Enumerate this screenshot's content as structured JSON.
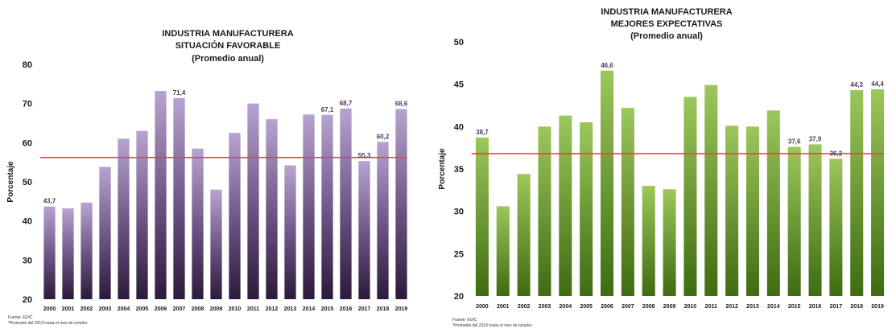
{
  "chart_data": [
    {
      "type": "bar",
      "title_lines": [
        "INDUSTRIA MANUFACTURERA",
        "SITUACIÓN FAVORABLE",
        "(Promedio anual)"
      ],
      "ylabel": "Porcentaje",
      "xlabel": "",
      "ylim": [
        20,
        80
      ],
      "yticks": [
        20,
        30,
        40,
        50,
        60,
        70,
        80
      ],
      "categories": [
        "2000",
        "2001",
        "2002",
        "2003",
        "2004",
        "2005",
        "2006",
        "2007",
        "2008",
        "2009",
        "2010",
        "2011",
        "2012",
        "2013",
        "2014",
        "2015",
        "2016",
        "2017",
        "2018",
        "2019"
      ],
      "values": [
        43.7,
        43.2,
        44.7,
        53.8,
        61.0,
        63.0,
        73.2,
        71.4,
        58.5,
        48.0,
        62.5,
        70.0,
        66.0,
        54.2,
        67.2,
        67.1,
        68.7,
        55.3,
        60.2,
        68.6
      ],
      "data_labels": [
        {
          "index": 0,
          "text": "43,7"
        },
        {
          "index": 7,
          "text": "71,4"
        },
        {
          "index": 15,
          "text": "67,1"
        },
        {
          "index": 16,
          "text": "68,7"
        },
        {
          "index": 17,
          "text": "55,3"
        },
        {
          "index": 18,
          "text": "60,2"
        },
        {
          "index": 19,
          "text": "68,6"
        }
      ],
      "reference_line": 56.2,
      "bar_colors": [
        "#b7a3d0",
        "#2b1a3a"
      ],
      "line_color": "#e04545",
      "label_color": "#4a3a60",
      "grid": false,
      "legend": "none",
      "footnotes": [
        "Fuente: EOIC",
        "*Promedio del 2019 hasta el mes de octubre"
      ]
    },
    {
      "type": "bar",
      "title_lines": [
        "INDUSTRIA MANUFACTURERA",
        "MEJORES EXPECTATIVAS",
        "(Promedio anual)"
      ],
      "ylabel": "Porcentaje",
      "xlabel": "",
      "ylim": [
        20,
        50
      ],
      "yticks": [
        20,
        25,
        30,
        35,
        40,
        45,
        50
      ],
      "categories": [
        "2000",
        "2001",
        "2002",
        "2003",
        "2004",
        "2005",
        "2006",
        "2007",
        "2008",
        "2009",
        "2010",
        "2011",
        "2012",
        "2013",
        "2014",
        "2015",
        "2016",
        "2017",
        "2018",
        "2019"
      ],
      "values": [
        38.7,
        30.6,
        34.4,
        40.0,
        41.3,
        40.5,
        46.6,
        42.2,
        33.0,
        32.6,
        43.5,
        44.9,
        40.1,
        40.0,
        41.9,
        37.6,
        37.9,
        36.2,
        44.3,
        44.4
      ],
      "data_labels": [
        {
          "index": 0,
          "text": "38,7"
        },
        {
          "index": 6,
          "text": "46,6"
        },
        {
          "index": 15,
          "text": "37,6"
        },
        {
          "index": 16,
          "text": "37,9"
        },
        {
          "index": 17,
          "text": "36,2"
        },
        {
          "index": 18,
          "text": "44,3"
        },
        {
          "index": 19,
          "text": "44,4"
        }
      ],
      "reference_line": 36.8,
      "bar_colors": [
        "#9cc75a",
        "#3f6b12"
      ],
      "line_color": "#e04545",
      "label_color": "#4a3a60",
      "grid": false,
      "legend": "none",
      "footnotes": [
        "Fuente: EOIC",
        "*Promedio del 2019 hasta el mes de octubre"
      ]
    }
  ]
}
